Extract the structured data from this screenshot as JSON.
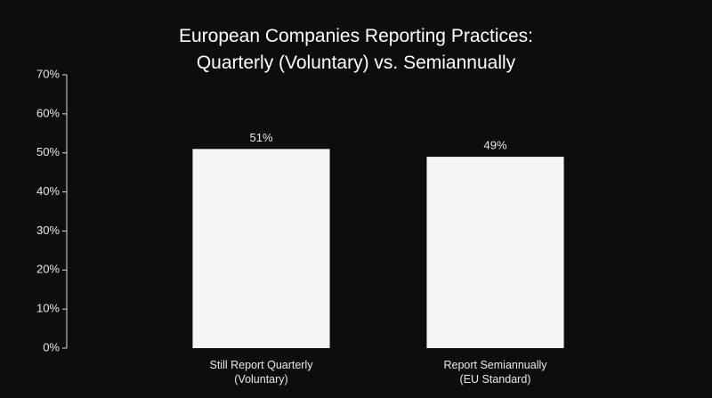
{
  "chart_data": {
    "type": "bar",
    "title": "European Companies Reporting Practices:\nQuarterly (Voluntary) vs. Semiannually",
    "categories": [
      "Still Report Quarterly\n(Voluntary)",
      "Report Semiannually\n(EU Standard)"
    ],
    "values": [
      51,
      49
    ],
    "value_labels": [
      "51%",
      "49%"
    ],
    "color": "#f4f4f4",
    "ylim": [
      0,
      70
    ],
    "yticks": [
      {
        "value": 0,
        "label": "0%"
      },
      {
        "value": 10,
        "label": "10%"
      },
      {
        "value": 20,
        "label": "20%"
      },
      {
        "value": 30,
        "label": "30%"
      },
      {
        "value": 40,
        "label": "40%"
      },
      {
        "value": 50,
        "label": "50%"
      },
      {
        "value": 60,
        "label": "60%"
      },
      {
        "value": 70,
        "label": "70%"
      }
    ],
    "grid": false
  }
}
